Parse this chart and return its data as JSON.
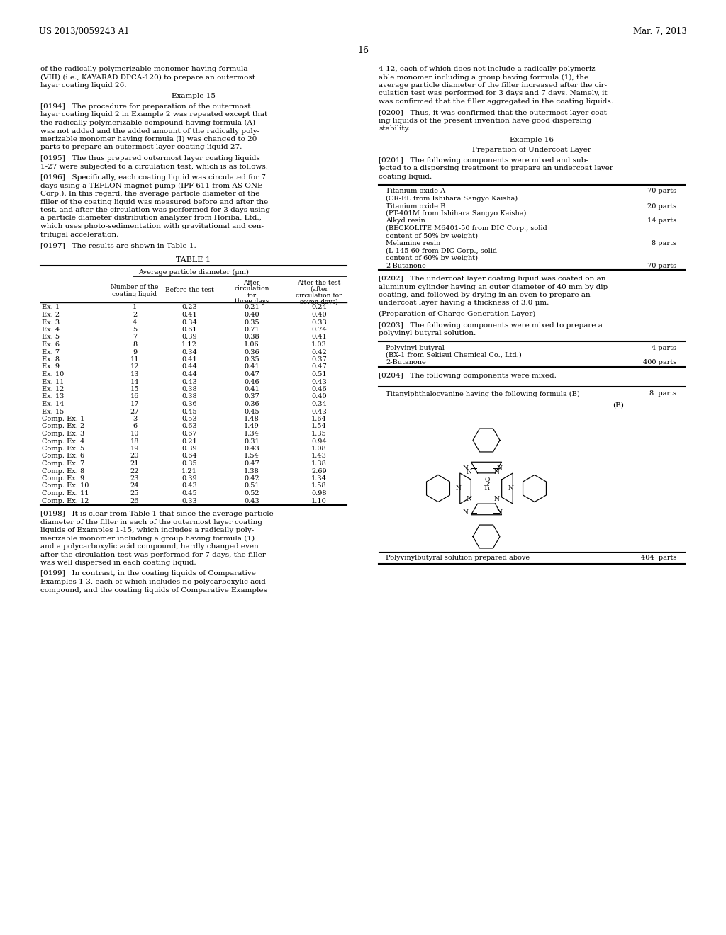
{
  "bg_color": "#ffffff",
  "header_left": "US 2013/0059243 A1",
  "header_right": "Mar. 7, 2013",
  "page_number": "16",
  "left_col_paragraphs_0": "of the radically polymerizable monomer having formula\n(VIII) (i.e., KAYARAD DPCA-120) to prepare an outermost\nlayer coating liquid 26.",
  "example15_heading": "Example 15",
  "para_0194": "[0194]   The procedure for preparation of the outermost\nlayer coating liquid 2 in Example 2 was repeated except that\nthe radically polymerizable compound having formula (A)\nwas not added and the added amount of the radically poly-\nmerizable monomer having formula (I) was changed to 20\nparts to prepare an outermost layer coating liquid 27.",
  "para_0195": "[0195]   The thus prepared outermost layer coating liquids\n1-27 were subjected to a circulation test, which is as follows.",
  "para_0196": "[0196]   Specifically, each coating liquid was circulated for 7\ndays using a TEFLON magnet pump (IPF-611 from AS ONE\nCorp.). In this regard, the average particle diameter of the\nfiller of the coating liquid was measured before and after the\ntest, and after the circulation was performed for 3 days using\na particle diameter distribution analyzer from Horiba, Ltd.,\nwhich uses photo-sedimentation with gravitational and cen-\ntrifugal acceleration.",
  "para_0197": "[0197]   The results are shown in Table 1.",
  "table_title": "TABLE 1",
  "table_header_main": "Average particle diameter (μm)",
  "table_rows": [
    [
      "Ex. 1",
      "1",
      "0.23",
      "0.21",
      "0.24"
    ],
    [
      "Ex. 2",
      "2",
      "0.41",
      "0.40",
      "0.40"
    ],
    [
      "Ex. 3",
      "4",
      "0.34",
      "0.35",
      "0.33"
    ],
    [
      "Ex. 4",
      "5",
      "0.61",
      "0.71",
      "0.74"
    ],
    [
      "Ex. 5",
      "7",
      "0.39",
      "0.38",
      "0.41"
    ],
    [
      "Ex. 6",
      "8",
      "1.12",
      "1.06",
      "1.03"
    ],
    [
      "Ex. 7",
      "9",
      "0.34",
      "0.36",
      "0.42"
    ],
    [
      "Ex. 8",
      "11",
      "0.41",
      "0.35",
      "0.37"
    ],
    [
      "Ex. 9",
      "12",
      "0.44",
      "0.41",
      "0.47"
    ],
    [
      "Ex. 10",
      "13",
      "0.44",
      "0.47",
      "0.51"
    ],
    [
      "Ex. 11",
      "14",
      "0.43",
      "0.46",
      "0.43"
    ],
    [
      "Ex. 12",
      "15",
      "0.38",
      "0.41",
      "0.46"
    ],
    [
      "Ex. 13",
      "16",
      "0.38",
      "0.37",
      "0.40"
    ],
    [
      "Ex. 14",
      "17",
      "0.36",
      "0.36",
      "0.34"
    ],
    [
      "Ex. 15",
      "27",
      "0.45",
      "0.45",
      "0.43"
    ],
    [
      "Comp. Ex. 1",
      "3",
      "0.53",
      "1.48",
      "1.64"
    ],
    [
      "Comp. Ex. 2",
      "6",
      "0.63",
      "1.49",
      "1.54"
    ],
    [
      "Comp. Ex. 3",
      "10",
      "0.67",
      "1.34",
      "1.35"
    ],
    [
      "Comp. Ex. 4",
      "18",
      "0.21",
      "0.31",
      "0.94"
    ],
    [
      "Comp. Ex. 5",
      "19",
      "0.39",
      "0.43",
      "1.08"
    ],
    [
      "Comp. Ex. 6",
      "20",
      "0.64",
      "1.54",
      "1.43"
    ],
    [
      "Comp. Ex. 7",
      "21",
      "0.35",
      "0.47",
      "1.38"
    ],
    [
      "Comp. Ex. 8",
      "22",
      "1.21",
      "1.38",
      "2.69"
    ],
    [
      "Comp. Ex. 9",
      "23",
      "0.39",
      "0.42",
      "1.34"
    ],
    [
      "Comp. Ex. 10",
      "24",
      "0.43",
      "0.51",
      "1.58"
    ],
    [
      "Comp. Ex. 11",
      "25",
      "0.45",
      "0.52",
      "0.98"
    ],
    [
      "Comp. Ex. 12",
      "26",
      "0.33",
      "0.43",
      "1.10"
    ]
  ],
  "para_0198": "[0198]   It is clear from Table 1 that since the average particle\ndiameter of the filler in each of the outermost layer coating\nliquids of Examples 1-15, which includes a radically poly-\nmerizable monomer including a group having formula (1)\nand a polycarboxylic acid compound, hardly changed even\nafter the circulation test was performed for 7 days, the filler\nwas well dispersed in each coating liquid.",
  "para_0199": "[0199]   In contrast, in the coating liquids of Comparative\nExamples 1-3, each of which includes no polycarboxylic acid\ncompound, and the coating liquids of Comparative Examples",
  "right_para_cont": "4-12, each of which does not include a radically polymeriz-\nable monomer including a group having formula (1), the\naverage particle diameter of the filler increased after the cir-\nculation test was performed for 3 days and 7 days. Namely, it\nwas confirmed that the filler aggregated in the coating liquids.",
  "para_0200": "[0200]   Thus, it was confirmed that the outermost layer coat-\ning liquids of the present invention have good dispersing\nstability.",
  "example16_heading": "Example 16",
  "undercoat_heading": "Preparation of Undercoat Layer",
  "para_0201": "[0201]   The following components were mixed and sub-\njected to a dispersing treatment to prepare an undercoat layer\ncoating liquid.",
  "undercoat_table": [
    [
      "Titanium oxide A",
      "70 parts"
    ],
    [
      "(CR-EL from Ishihara Sangyo Kaisha)",
      ""
    ],
    [
      "Titanium oxide B",
      "20 parts"
    ],
    [
      "(PT-401M from Ishihara Sangyo Kaisha)",
      ""
    ],
    [
      "Alkyd resin",
      "14 parts"
    ],
    [
      "(BECKOLITE M6401-50 from DIC Corp., solid",
      ""
    ],
    [
      "content of 50% by weight)",
      ""
    ],
    [
      "Melamine resin",
      "8 parts"
    ],
    [
      "(L-145-60 from DIC Corp., solid",
      ""
    ],
    [
      "content of 60% by weight)",
      ""
    ],
    [
      "2-Butanone",
      "70 parts"
    ]
  ],
  "para_0202": "[0202]   The undercoat layer coating liquid was coated on an\naluminum cylinder having an outer diameter of 40 mm by dip\ncoating, and followed by drying in an oven to prepare an\nundercoat layer having a thickness of 3.0 μm.",
  "charge_gen_heading": "(Preparation of Charge Generation Layer)",
  "para_0203": "[0203]   The following components were mixed to prepare a\npolyvinyl butyral solution.",
  "polyvinyl_table": [
    [
      "Polyvinyl butyral",
      "4 parts"
    ],
    [
      "(BX-1 from Sekisui Chemical Co., Ltd.)",
      ""
    ],
    [
      "2-Butanone",
      "400 parts"
    ]
  ],
  "para_0204": "[0204]   The following components were mixed.",
  "chem_table_top_label": "Titanylphthalocyanine having the following formula (B)",
  "chem_table_top_value": "8  parts",
  "chem_formula_label": "(B)",
  "chem_table_bottom_label": "Polyvinylbutyral solution prepared above",
  "chem_table_bottom_value": "404  parts"
}
